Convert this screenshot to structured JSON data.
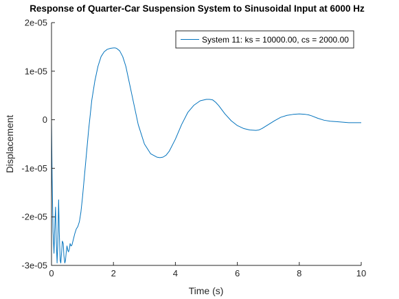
{
  "chart_data": {
    "type": "line",
    "title": "Response of Quarter-Car Suspension System to Sinusoidal Input at 6000 Hz",
    "xlabel": "Time (s)",
    "ylabel": "Displacement",
    "xlim": [
      0,
      10
    ],
    "ylim": [
      -3e-05,
      2e-05
    ],
    "x_ticks": [
      0,
      2,
      4,
      6,
      8,
      10
    ],
    "x_tick_labels": [
      "0",
      "2",
      "4",
      "6",
      "8",
      "10"
    ],
    "y_ticks": [
      -3e-05,
      -2e-05,
      -1e-05,
      0,
      1e-05,
      2e-05
    ],
    "y_tick_labels": [
      "-3e-05",
      "-2e-05",
      "-1e-05",
      "0",
      "1e-05",
      "2e-05"
    ],
    "grid": false,
    "legend_position": "top-right",
    "series": [
      {
        "name": "System 11: ks = 10000.00, cs = 2000.00",
        "color": "#0072bd",
        "x": [
          0,
          0.02,
          0.05,
          0.08,
          0.1,
          0.13,
          0.15,
          0.18,
          0.2,
          0.23,
          0.25,
          0.28,
          0.3,
          0.33,
          0.35,
          0.38,
          0.4,
          0.43,
          0.45,
          0.48,
          0.5,
          0.53,
          0.55,
          0.58,
          0.6,
          0.63,
          0.66,
          0.7,
          0.75,
          0.8,
          0.85,
          0.9,
          0.95,
          1.0,
          1.1,
          1.2,
          1.3,
          1.4,
          1.5,
          1.6,
          1.7,
          1.8,
          1.9,
          2.0,
          2.05,
          2.1,
          2.2,
          2.3,
          2.4,
          2.6,
          2.8,
          3.0,
          3.2,
          3.4,
          3.5,
          3.6,
          3.7,
          3.8,
          4.0,
          4.2,
          4.4,
          4.6,
          4.8,
          5.0,
          5.1,
          5.2,
          5.3,
          5.4,
          5.6,
          5.8,
          6.0,
          6.2,
          6.4,
          6.6,
          6.7,
          6.8,
          7.0,
          7.2,
          7.4,
          7.6,
          7.8,
          8.0,
          8.2,
          8.3,
          8.4,
          8.6,
          8.8,
          9.0,
          9.2,
          9.4,
          9.6,
          9.8,
          10.0
        ],
        "y": [
          0,
          -1.2e-05,
          -2.3e-05,
          -2.75e-05,
          -2.3e-05,
          -1.8e-05,
          -2.4e-05,
          -2.95e-05,
          -2.6e-05,
          -1.65e-05,
          -2.3e-05,
          -2.9e-05,
          -2.95e-05,
          -2.7e-05,
          -2.5e-05,
          -2.55e-05,
          -2.8e-05,
          -2.95e-05,
          -2.9e-05,
          -2.7e-05,
          -2.6e-05,
          -2.7e-05,
          -2.72e-05,
          -2.65e-05,
          -2.55e-05,
          -2.6e-05,
          -2.58e-05,
          -2.48e-05,
          -2.35e-05,
          -2.25e-05,
          -2.2e-05,
          -2.1e-05,
          -1.9e-05,
          -1.6e-05,
          -9e-06,
          -2e-06,
          4e-06,
          8e-06,
          1.1e-05,
          1.3e-05,
          1.4e-05,
          1.45e-05,
          1.47e-05,
          1.48e-05,
          1.48e-05,
          1.47e-05,
          1.42e-05,
          1.3e-05,
          1.1e-05,
          5e-06,
          -1e-06,
          -5e-06,
          -7e-06,
          -7.7e-06,
          -7.8e-06,
          -7.7e-06,
          -7.3e-06,
          -6.5e-06,
          -4e-06,
          -1e-06,
          1.5e-06,
          3e-06,
          3.9e-06,
          4.2e-06,
          4.2e-06,
          4.1e-06,
          3.6e-06,
          2.9e-06,
          1.2e-06,
          -2e-07,
          -1.2e-06,
          -1.8e-06,
          -2.1e-06,
          -2.2e-06,
          -2.1e-06,
          -1.8e-06,
          -1e-06,
          -2e-07,
          5e-07,
          9e-07,
          1.1e-06,
          1.2e-06,
          1.1e-06,
          1e-06,
          8e-07,
          3e-07,
          -1e-07,
          -3e-07,
          -4e-07,
          -5e-07,
          -6e-07,
          -6e-07,
          -6e-07
        ]
      }
    ]
  }
}
